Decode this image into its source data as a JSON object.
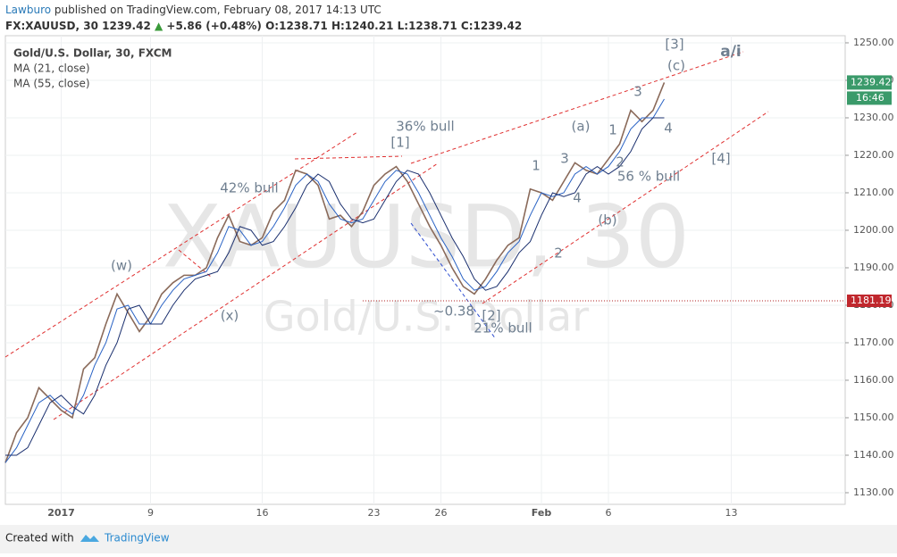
{
  "header": {
    "publisher": "Lawburo",
    "published": "published on TradingView.com, February 08, 2017 14:13 UTC",
    "symbol": "FX:XAUUSD, 30",
    "last": "1239.42",
    "change": "+5.86 (+0.48%)",
    "open_label": "O:",
    "open": "1238.71",
    "high_label": "H:",
    "high": "1240.21",
    "low_label": "L:",
    "low": "1238.71",
    "close_label": "C:",
    "close": "1239.42"
  },
  "legend": {
    "instrument": "Gold/U.S. Dollar, 30, FXCM"
  },
  "watermark": {
    "symbol": "XAUUSD, 30",
    "name": "Gold/U.S. Dollar"
  },
  "footer": {
    "created": "Created with",
    "brand": "TradingView"
  },
  "chart_data": {
    "type": "line",
    "categories": [
      null,
      null,
      null,
      null,
      null,
      "2017",
      null,
      null,
      null,
      null,
      null,
      null,
      null,
      "9",
      null,
      null,
      null,
      null,
      null,
      null,
      null,
      null,
      null,
      "16",
      null,
      null,
      null,
      null,
      null,
      null,
      null,
      null,
      null,
      "23",
      null,
      null,
      null,
      null,
      null,
      "26",
      null,
      null,
      null,
      null,
      null,
      null,
      null,
      null,
      "Feb",
      null,
      null,
      null,
      null,
      null,
      "6",
      null,
      null,
      null,
      null,
      null,
      null,
      null,
      null,
      null,
      null,
      "13",
      null,
      null,
      null,
      null,
      null,
      null,
      null,
      null,
      null
    ],
    "series": [
      {
        "name": "Gold/U.S. Dollar",
        "color": "#8a6a5a",
        "values": [
          1138,
          1146,
          1150,
          1158,
          1155,
          1152,
          1150,
          1163,
          1166,
          1175,
          1183,
          1178,
          1173,
          1177,
          1183,
          1186,
          1188,
          1188,
          1190,
          1198,
          1204,
          1197,
          1196,
          1198,
          1205,
          1208,
          1216,
          1215,
          1212,
          1203,
          1204,
          1201,
          1205,
          1212,
          1215,
          1217,
          1213,
          1207,
          1201,
          1196,
          1190,
          1185,
          1183,
          1187,
          1192,
          1196,
          1198,
          1211,
          1210,
          1208,
          1213,
          1218,
          1216,
          1215,
          1219,
          1223,
          1232,
          1229,
          1232,
          1239.42,
          null,
          null,
          null,
          null,
          null,
          null,
          null,
          null,
          null,
          null,
          null,
          null,
          null,
          null,
          null
        ]
      },
      {
        "name": "MA (21, close)",
        "color": "#2962c4",
        "values": [
          1138,
          1142,
          1148,
          1154,
          1156,
          1153,
          1151,
          1156,
          1164,
          1170,
          1179,
          1180,
          1175,
          1175,
          1180,
          1184,
          1187,
          1188,
          1189,
          1194,
          1201,
          1200,
          1196,
          1197,
          1201,
          1206,
          1212,
          1215,
          1213,
          1207,
          1203,
          1202,
          1203,
          1208,
          1213,
          1216,
          1215,
          1210,
          1204,
          1198,
          1193,
          1187,
          1184,
          1185,
          1189,
          1194,
          1197,
          1204,
          1210,
          1209,
          1210,
          1215,
          1217,
          1215,
          1217,
          1221,
          1227,
          1230,
          1230,
          1235,
          null,
          null,
          null,
          null,
          null,
          null,
          null,
          null,
          null,
          null,
          null,
          null,
          null,
          null,
          null
        ]
      },
      {
        "name": "MA (55, close)",
        "color": "#1a2f6e",
        "values": [
          1140,
          1140,
          1142,
          1148,
          1154,
          1156,
          1153,
          1151,
          1156,
          1164,
          1170,
          1179,
          1180,
          1175,
          1175,
          1180,
          1184,
          1187,
          1188,
          1189,
          1194,
          1201,
          1200,
          1196,
          1197,
          1201,
          1206,
          1212,
          1215,
          1213,
          1207,
          1203,
          1202,
          1203,
          1208,
          1213,
          1216,
          1215,
          1210,
          1204,
          1198,
          1193,
          1187,
          1184,
          1185,
          1189,
          1194,
          1197,
          1204,
          1210,
          1209,
          1210,
          1215,
          1217,
          1215,
          1217,
          1221,
          1227,
          1230,
          1230,
          null,
          null,
          null,
          null,
          null,
          null,
          null,
          null,
          null,
          null,
          null,
          null,
          null,
          null,
          null
        ]
      }
    ],
    "ylim": [
      1126.9,
      1251.9
    ],
    "yticks": [
      {
        "value": 1130,
        "label": "1130.00"
      },
      {
        "value": 1140,
        "label": "1140.00"
      },
      {
        "value": 1150,
        "label": "1150.00"
      },
      {
        "value": 1160,
        "label": "1160.00"
      },
      {
        "value": 1170,
        "label": "1170.00"
      },
      {
        "value": 1180,
        "label": "1180.00"
      },
      {
        "value": 1190,
        "label": "1190.00"
      },
      {
        "value": 1200,
        "label": "1200.00"
      },
      {
        "value": 1210,
        "label": "1210.00"
      },
      {
        "value": 1220,
        "label": "1220.00"
      },
      {
        "value": 1230,
        "label": "1230.00"
      },
      {
        "value": 1240,
        "label": "1240.00"
      },
      {
        "value": 1250,
        "label": "1250.00"
      }
    ],
    "grid": true,
    "last_price": {
      "value": 1239.42,
      "label": "1239.42",
      "time": "16:46"
    },
    "level": {
      "value": 1181.19,
      "label": "1181.19"
    },
    "annotations": [
      "[3]",
      "a/i",
      "(c)",
      "3",
      "1",
      "(a)",
      "2",
      "4",
      "56 % bull",
      "[4]",
      "(b)",
      "1",
      "3",
      "4",
      "2",
      "36% bull",
      "[1]",
      "42% bull",
      "(w)",
      "(x)",
      "~0.38",
      "[2]",
      "21% bull"
    ]
  }
}
